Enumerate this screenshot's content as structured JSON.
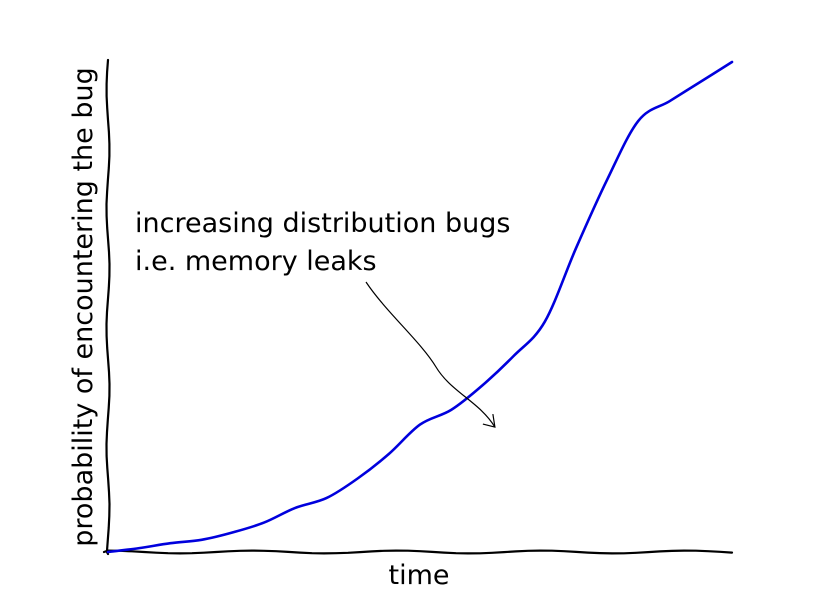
{
  "chart_data": {
    "type": "line",
    "title": "",
    "xlabel": "time",
    "ylabel": "probability of encountering the bug",
    "xlim": [
      0,
      1
    ],
    "ylim": [
      0,
      1
    ],
    "grid": false,
    "legend": "none",
    "series": [
      {
        "color": "#0000dd",
        "x": [
          0.0,
          0.05,
          0.1,
          0.15,
          0.2,
          0.25,
          0.3,
          0.35,
          0.4,
          0.45,
          0.5,
          0.55,
          0.6,
          0.65,
          0.7,
          0.75,
          0.8,
          0.85,
          0.9,
          0.95,
          1.0
        ],
        "y": [
          0.0,
          0.008,
          0.018,
          0.025,
          0.04,
          0.06,
          0.09,
          0.11,
          0.15,
          0.2,
          0.26,
          0.29,
          0.34,
          0.4,
          0.47,
          0.62,
          0.76,
          0.88,
          0.92,
          0.96,
          1.0
        ]
      }
    ],
    "annotation": {
      "lines": [
        "increasing distribution bugs",
        "i.e. memory leaks"
      ],
      "point": {
        "x": 0.62,
        "y": 0.255
      }
    }
  }
}
